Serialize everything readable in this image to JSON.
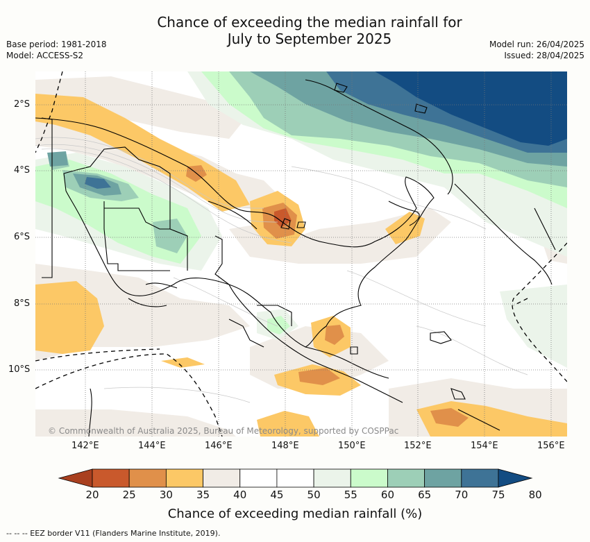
{
  "title_line1": "Chance of exceeding the median rainfall for",
  "title_line2": "July to September 2025",
  "meta_left": [
    "Base period: 1981-2018",
    "Model: ACCESS-S2"
  ],
  "meta_right": [
    "Model run: 26/04/2025",
    "Issued: 28/04/2025"
  ],
  "copyright": "© Commonwealth of Australia 2025, Bureau of Meteorology, supported by COSPPac",
  "lat_ticks": [
    "2°S",
    "4°S",
    "6°S",
    "8°S",
    "10°S"
  ],
  "lon_ticks": [
    "142°E",
    "144°E",
    "146°E",
    "148°E",
    "150°E",
    "152°E",
    "154°E",
    "156°E"
  ],
  "colorbar": {
    "ticks": [
      "20",
      "25",
      "30",
      "35",
      "40",
      "45",
      "50",
      "55",
      "60",
      "65",
      "70",
      "75",
      "80"
    ],
    "colors": [
      "#a9401f",
      "#c9592c",
      "#e0904a",
      "#fcc866",
      "#f1ece6",
      "#ffffff",
      "#ffffff",
      "#ebf4ea",
      "#cbfbcb",
      "#9dcfb7",
      "#6ea3a2",
      "#3e7396",
      "#134c82"
    ],
    "title": "Chance of exceeding median rainfall (%)"
  },
  "footnote": "--  --  -- EEZ border V11 (Flanders Marine Institute, 2019)."
}
